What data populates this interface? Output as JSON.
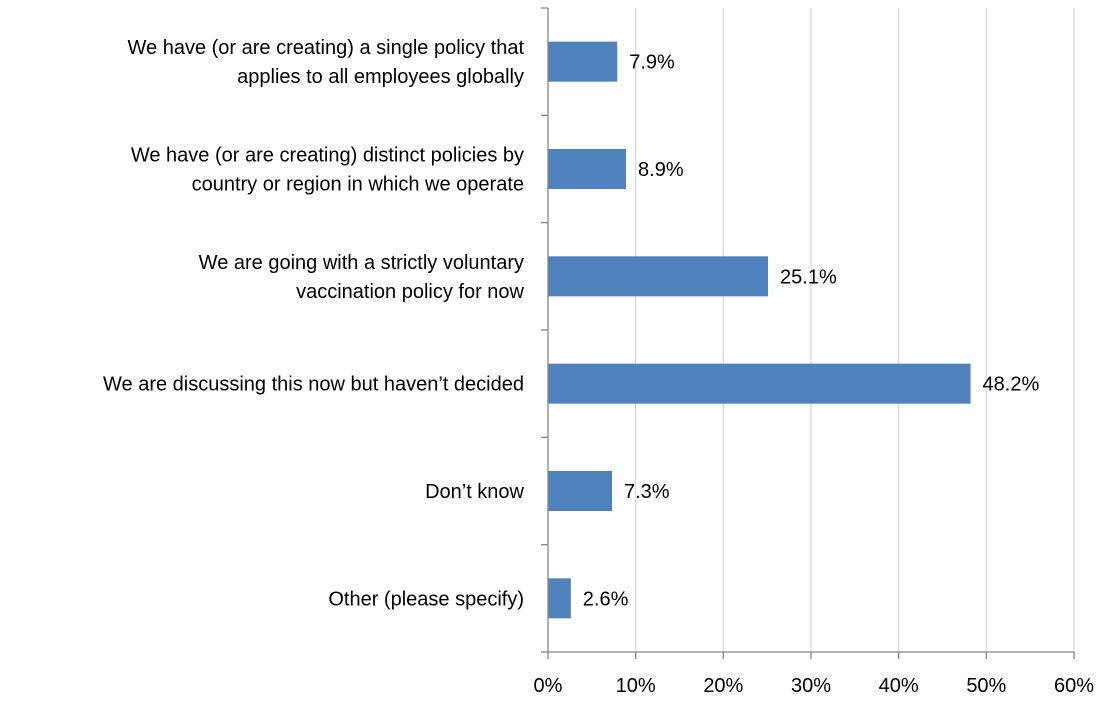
{
  "chart_data": {
    "type": "bar",
    "orientation": "horizontal",
    "title": "",
    "xlabel": "",
    "ylabel": "",
    "xlim": [
      0,
      60
    ],
    "x_ticks": [
      0,
      10,
      20,
      30,
      40,
      50,
      60
    ],
    "tick_suffix": "%",
    "grid": "vertical",
    "legend": "none",
    "bar_color": "#4F81BD",
    "categories": [
      [
        "We have (or are creating) a single policy that",
        "applies to all employees globally"
      ],
      [
        "We have (or are creating) distinct policies by",
        "country or region in which we operate"
      ],
      [
        "We are going with a strictly voluntary",
        "vaccination policy for now"
      ],
      [
        "We are discussing this now but haven’t decided"
      ],
      [
        "Don’t know"
      ],
      [
        "Other (please specify)"
      ]
    ],
    "values": [
      7.9,
      8.9,
      25.1,
      48.2,
      7.3,
      2.6
    ],
    "data_labels": [
      "7.9%",
      "8.9%",
      "25.1%",
      "48.2%",
      "7.3%",
      "2.6%"
    ]
  }
}
